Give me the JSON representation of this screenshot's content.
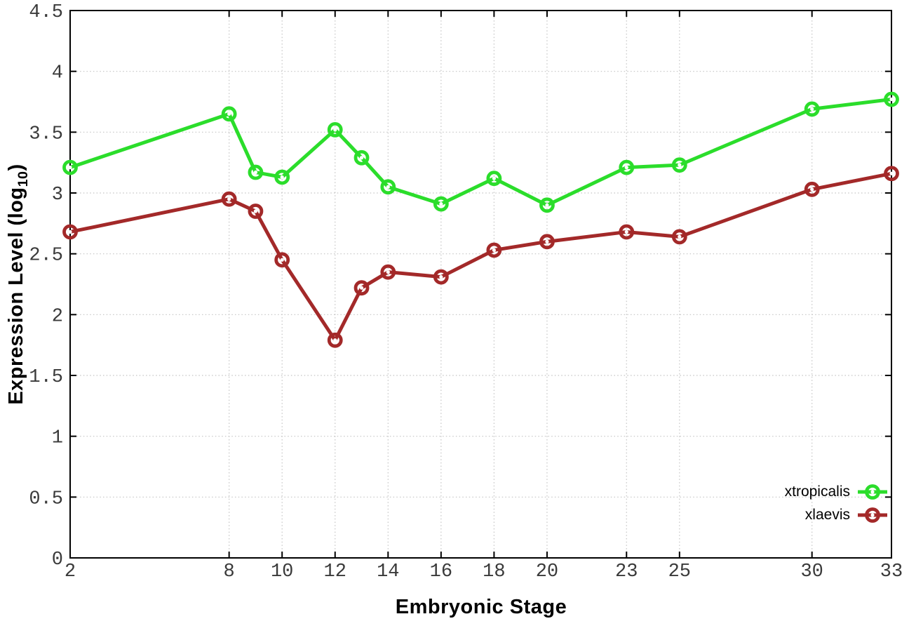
{
  "chart_data": {
    "type": "line",
    "xlabel": "Embryonic Stage",
    "ylabel": "Expression Level (log10)",
    "ylabel_parts": {
      "main": "Expression Level (log",
      "sub": "10",
      "suffix": ")"
    },
    "xlim": [
      2,
      33
    ],
    "ylim": [
      0,
      4.5
    ],
    "grid": true,
    "legend_position": "inside-bottom-right",
    "xticks": {
      "values": [
        2,
        8,
        10,
        12,
        14,
        16,
        18,
        20,
        23,
        25,
        30,
        33
      ],
      "labels": [
        "2",
        "8",
        "10",
        "12",
        "14",
        "16",
        "18",
        "20",
        "23",
        "25",
        "30",
        "33"
      ]
    },
    "yticks": {
      "values": [
        0,
        0.5,
        1,
        1.5,
        2,
        2.5,
        3,
        3.5,
        4,
        4.5
      ],
      "labels": [
        "0",
        "0.5",
        "1",
        "1.5",
        "2",
        "2.5",
        "3",
        "3.5",
        "4",
        "4.5"
      ]
    },
    "x": [
      2,
      8,
      9,
      10,
      12,
      13,
      14,
      16,
      18,
      20,
      23,
      25,
      30,
      33
    ],
    "series": [
      {
        "name": "xtropicalis",
        "color": "#2bdd2b",
        "marker": "open-circle",
        "values": [
          3.21,
          3.65,
          3.17,
          3.13,
          3.52,
          3.29,
          3.05,
          2.91,
          3.12,
          2.9,
          3.21,
          3.23,
          3.69,
          3.77
        ]
      },
      {
        "name": "xlaevis",
        "color": "#a32929",
        "marker": "open-circle",
        "values": [
          2.68,
          2.95,
          2.85,
          2.45,
          1.79,
          2.22,
          2.35,
          2.31,
          2.53,
          2.6,
          2.68,
          2.64,
          3.03,
          3.16
        ]
      }
    ]
  },
  "colors": {
    "background": "#ffffff",
    "axis": "#000000",
    "grid": "#c4c4c4",
    "tick_text": "#3a3a3a"
  }
}
